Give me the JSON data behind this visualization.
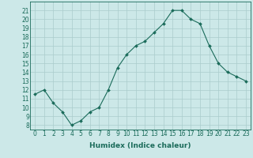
{
  "x": [
    0,
    1,
    2,
    3,
    4,
    5,
    6,
    7,
    8,
    9,
    10,
    11,
    12,
    13,
    14,
    15,
    16,
    17,
    18,
    19,
    20,
    21,
    22,
    23
  ],
  "y": [
    11.5,
    12.0,
    10.5,
    9.5,
    8.0,
    8.5,
    9.5,
    10.0,
    12.0,
    14.5,
    16.0,
    17.0,
    17.5,
    18.5,
    19.5,
    21.0,
    21.0,
    20.0,
    19.5,
    17.0,
    15.0,
    14.0,
    13.5,
    13.0
  ],
  "xlabel": "Humidex (Indice chaleur)",
  "xlim": [
    -0.5,
    23.5
  ],
  "ylim": [
    7.5,
    22.0
  ],
  "yticks": [
    8,
    9,
    10,
    11,
    12,
    13,
    14,
    15,
    16,
    17,
    18,
    19,
    20,
    21
  ],
  "xticks": [
    0,
    1,
    2,
    3,
    4,
    5,
    6,
    7,
    8,
    9,
    10,
    11,
    12,
    13,
    14,
    15,
    16,
    17,
    18,
    19,
    20,
    21,
    22,
    23
  ],
  "line_color": "#1a6b5a",
  "marker": "D",
  "marker_size": 2.0,
  "bg_color": "#cce8e8",
  "grid_color": "#aacccc",
  "label_fontsize": 6.5,
  "tick_fontsize": 5.5
}
